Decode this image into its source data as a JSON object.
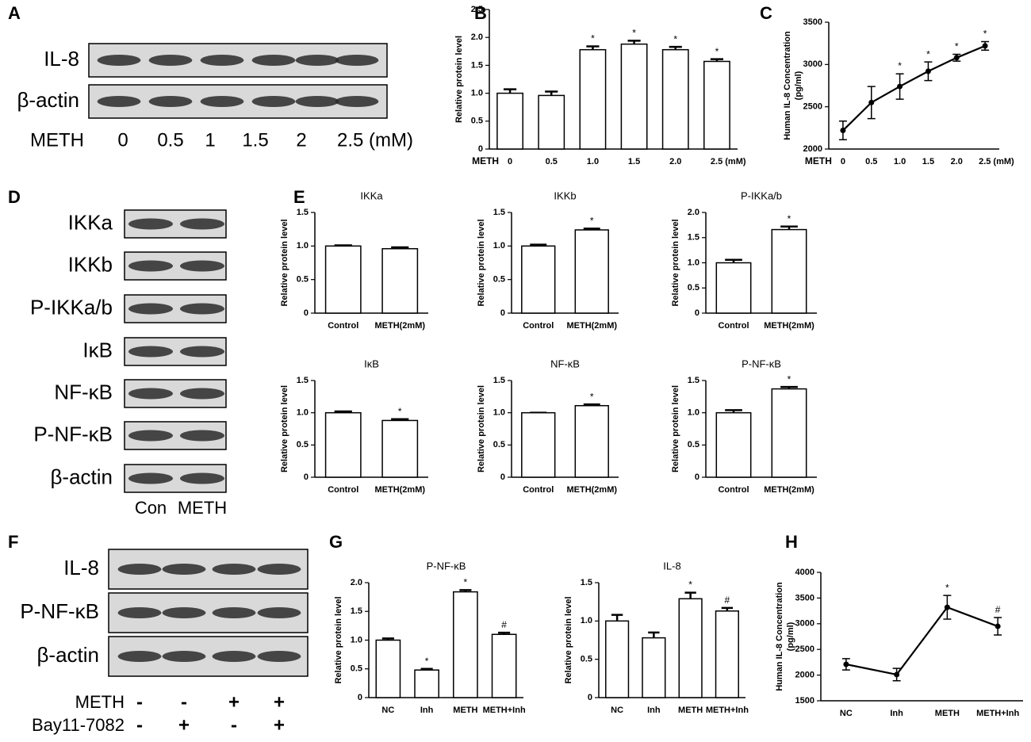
{
  "panel_labels": [
    "A",
    "B",
    "C",
    "D",
    "E",
    "F",
    "G",
    "H"
  ],
  "blots": {
    "A": {
      "rows": [
        "IL-8",
        "β-actin"
      ],
      "treatment_label": "METH",
      "lanes": [
        "0",
        "0.5",
        "1",
        "1.5",
        "2",
        "2.5 (mM)"
      ]
    },
    "D": {
      "rows": [
        "IKKa",
        "IKKb",
        "P-IKKa/b",
        "IκB",
        "NF-κB",
        "P-NF-κB",
        "β-actin"
      ],
      "lanes": [
        "Con",
        "METH"
      ]
    },
    "F": {
      "rows": [
        "IL-8",
        "P-NF-κB",
        "β-actin"
      ],
      "treatments": [
        {
          "name": "METH",
          "signs": [
            "-",
            "-",
            "+",
            "+"
          ]
        },
        {
          "name": "Bay11-7082",
          "signs": [
            "-",
            "+",
            "-",
            "+"
          ]
        }
      ]
    }
  },
  "chart_data": [
    {
      "type": "bar",
      "ylabel": [
        "Relative protein level"
      ],
      "xlabel": "METH",
      "categories": [
        "0",
        "0.5",
        "1.0",
        "1.5",
        "2.0",
        "2.5 (mM)"
      ],
      "values": [
        1.0,
        0.96,
        1.78,
        1.88,
        1.78,
        1.57
      ],
      "errors": [
        0.07,
        0.07,
        0.06,
        0.06,
        0.05,
        0.04
      ],
      "annotations": [
        null,
        null,
        "*",
        "*",
        "*",
        "*"
      ],
      "ylim": [
        0,
        2.5
      ],
      "yticks": [
        0,
        0.5,
        {
          "value": 1,
          "label": "1.0"
        },
        1.5,
        {
          "value": 2,
          "label": "2.0"
        },
        2.5
      ]
    },
    {
      "type": "line",
      "ylabel": [
        "Human IL-8 Concentration",
        "(pg/ml)"
      ],
      "xlabel": "METH",
      "categories": [
        "0",
        "0.5",
        "1.0",
        "1.5",
        "2.0",
        "2.5 (mM)"
      ],
      "values": [
        2220,
        2550,
        2740,
        2920,
        3080,
        3220
      ],
      "errors": [
        110,
        190,
        150,
        110,
        40,
        50
      ],
      "annotations": [
        null,
        null,
        "*",
        "*",
        "*",
        "*"
      ],
      "ylim": [
        2000,
        3500
      ],
      "yticks": [
        2000,
        2500,
        3000,
        3500
      ]
    },
    {
      "type": "bar",
      "title": "IKKa",
      "ylabel": [
        "Relative protein level"
      ],
      "categories": [
        "Control",
        "METH(2mM)"
      ],
      "values": [
        1.0,
        0.96
      ],
      "errors": [
        0.01,
        0.02
      ],
      "annotations": [
        null,
        null
      ],
      "ylim": [
        0,
        1.5
      ],
      "yticks": [
        0,
        0.5,
        {
          "value": 1,
          "label": "1.0"
        },
        1.5
      ]
    },
    {
      "type": "bar",
      "title": "IKKb",
      "ylabel": [
        "Relative protein level"
      ],
      "categories": [
        "Control",
        "METH(2mM)"
      ],
      "values": [
        1.0,
        1.24
      ],
      "errors": [
        0.02,
        0.02
      ],
      "annotations": [
        null,
        "*"
      ],
      "ylim": [
        0,
        1.5
      ],
      "yticks": [
        0,
        0.5,
        {
          "value": 1,
          "label": "1.0"
        },
        1.5
      ]
    },
    {
      "type": "bar",
      "title": "P-IKKa/b",
      "ylabel": [
        "Relative protein level"
      ],
      "categories": [
        "Control",
        "METH(2mM)"
      ],
      "values": [
        1.0,
        1.66
      ],
      "errors": [
        0.06,
        0.06
      ],
      "annotations": [
        null,
        "*"
      ],
      "ylim": [
        0,
        2
      ],
      "yticks": [
        0,
        0.5,
        {
          "value": 1,
          "label": "1.0"
        },
        1.5,
        {
          "value": 2,
          "label": "2.0"
        }
      ]
    },
    {
      "type": "bar",
      "title": "IκB",
      "ylabel": [
        "Relative protein level"
      ],
      "categories": [
        "Control",
        "METH(2mM)"
      ],
      "values": [
        1.0,
        0.88
      ],
      "errors": [
        0.02,
        0.02
      ],
      "annotations": [
        null,
        "*"
      ],
      "ylim": [
        0,
        1.5
      ],
      "yticks": [
        0,
        0.5,
        {
          "value": 1,
          "label": "1.0"
        },
        1.5
      ]
    },
    {
      "type": "bar",
      "title": "NF-κB",
      "ylabel": [
        "Relative protein level"
      ],
      "categories": [
        "Control",
        "METH(2mM)"
      ],
      "values": [
        1.0,
        1.11
      ],
      "errors": [
        0,
        0.02
      ],
      "annotations": [
        null,
        "*"
      ],
      "ylim": [
        0,
        1.5
      ],
      "yticks": [
        0,
        0.5,
        {
          "value": 1,
          "label": "1.0"
        },
        1.5
      ]
    },
    {
      "type": "bar",
      "title": "P-NF-κB",
      "ylabel": [
        "Relative protein level"
      ],
      "categories": [
        "Control",
        "METH(2mM)"
      ],
      "values": [
        1.0,
        1.37
      ],
      "errors": [
        0.04,
        0.03
      ],
      "annotations": [
        null,
        "*"
      ],
      "ylim": [
        0,
        1.5
      ],
      "yticks": [
        0,
        0.5,
        {
          "value": 1,
          "label": "1.0"
        },
        1.5
      ]
    },
    {
      "type": "bar",
      "title": "P-NF-κB",
      "ylabel": [
        "Relative protein level"
      ],
      "categories": [
        "NC",
        "Inh",
        "METH",
        "METH+Inh"
      ],
      "values": [
        1.0,
        0.48,
        1.84,
        1.1
      ],
      "errors": [
        0.03,
        0.02,
        0.03,
        0.03
      ],
      "annotations": [
        null,
        "*",
        "*",
        "#"
      ],
      "ylim": [
        0,
        2
      ],
      "yticks": [
        0,
        0.5,
        {
          "value": 1,
          "label": "1.0"
        },
        1.5,
        {
          "value": 2,
          "label": "2.0"
        }
      ]
    },
    {
      "type": "bar",
      "title": "IL-8",
      "ylabel": [
        "Relative protein level"
      ],
      "categories": [
        "NC",
        "Inh",
        "METH",
        "METH+Inh"
      ],
      "values": [
        1.0,
        0.78,
        1.29,
        1.13
      ],
      "errors": [
        0.08,
        0.07,
        0.08,
        0.04
      ],
      "annotations": [
        null,
        null,
        "*",
        "#"
      ],
      "ylim": [
        0,
        1.5
      ],
      "yticks": [
        0,
        0.5,
        {
          "value": 1,
          "label": "1.0"
        },
        1.5
      ]
    },
    {
      "type": "line",
      "ylabel": [
        "Human IL-8 Concentration",
        "(pg/ml)"
      ],
      "categories": [
        "NC",
        "Inh",
        "METH",
        "METH+Inh"
      ],
      "values": [
        2210,
        2010,
        3320,
        2950
      ],
      "errors": [
        110,
        120,
        230,
        170
      ],
      "annotations": [
        null,
        null,
        "*",
        "#"
      ],
      "ylim": [
        1500,
        4000
      ],
      "yticks": [
        1500,
        2000,
        2500,
        3000,
        3500,
        4000
      ]
    }
  ]
}
